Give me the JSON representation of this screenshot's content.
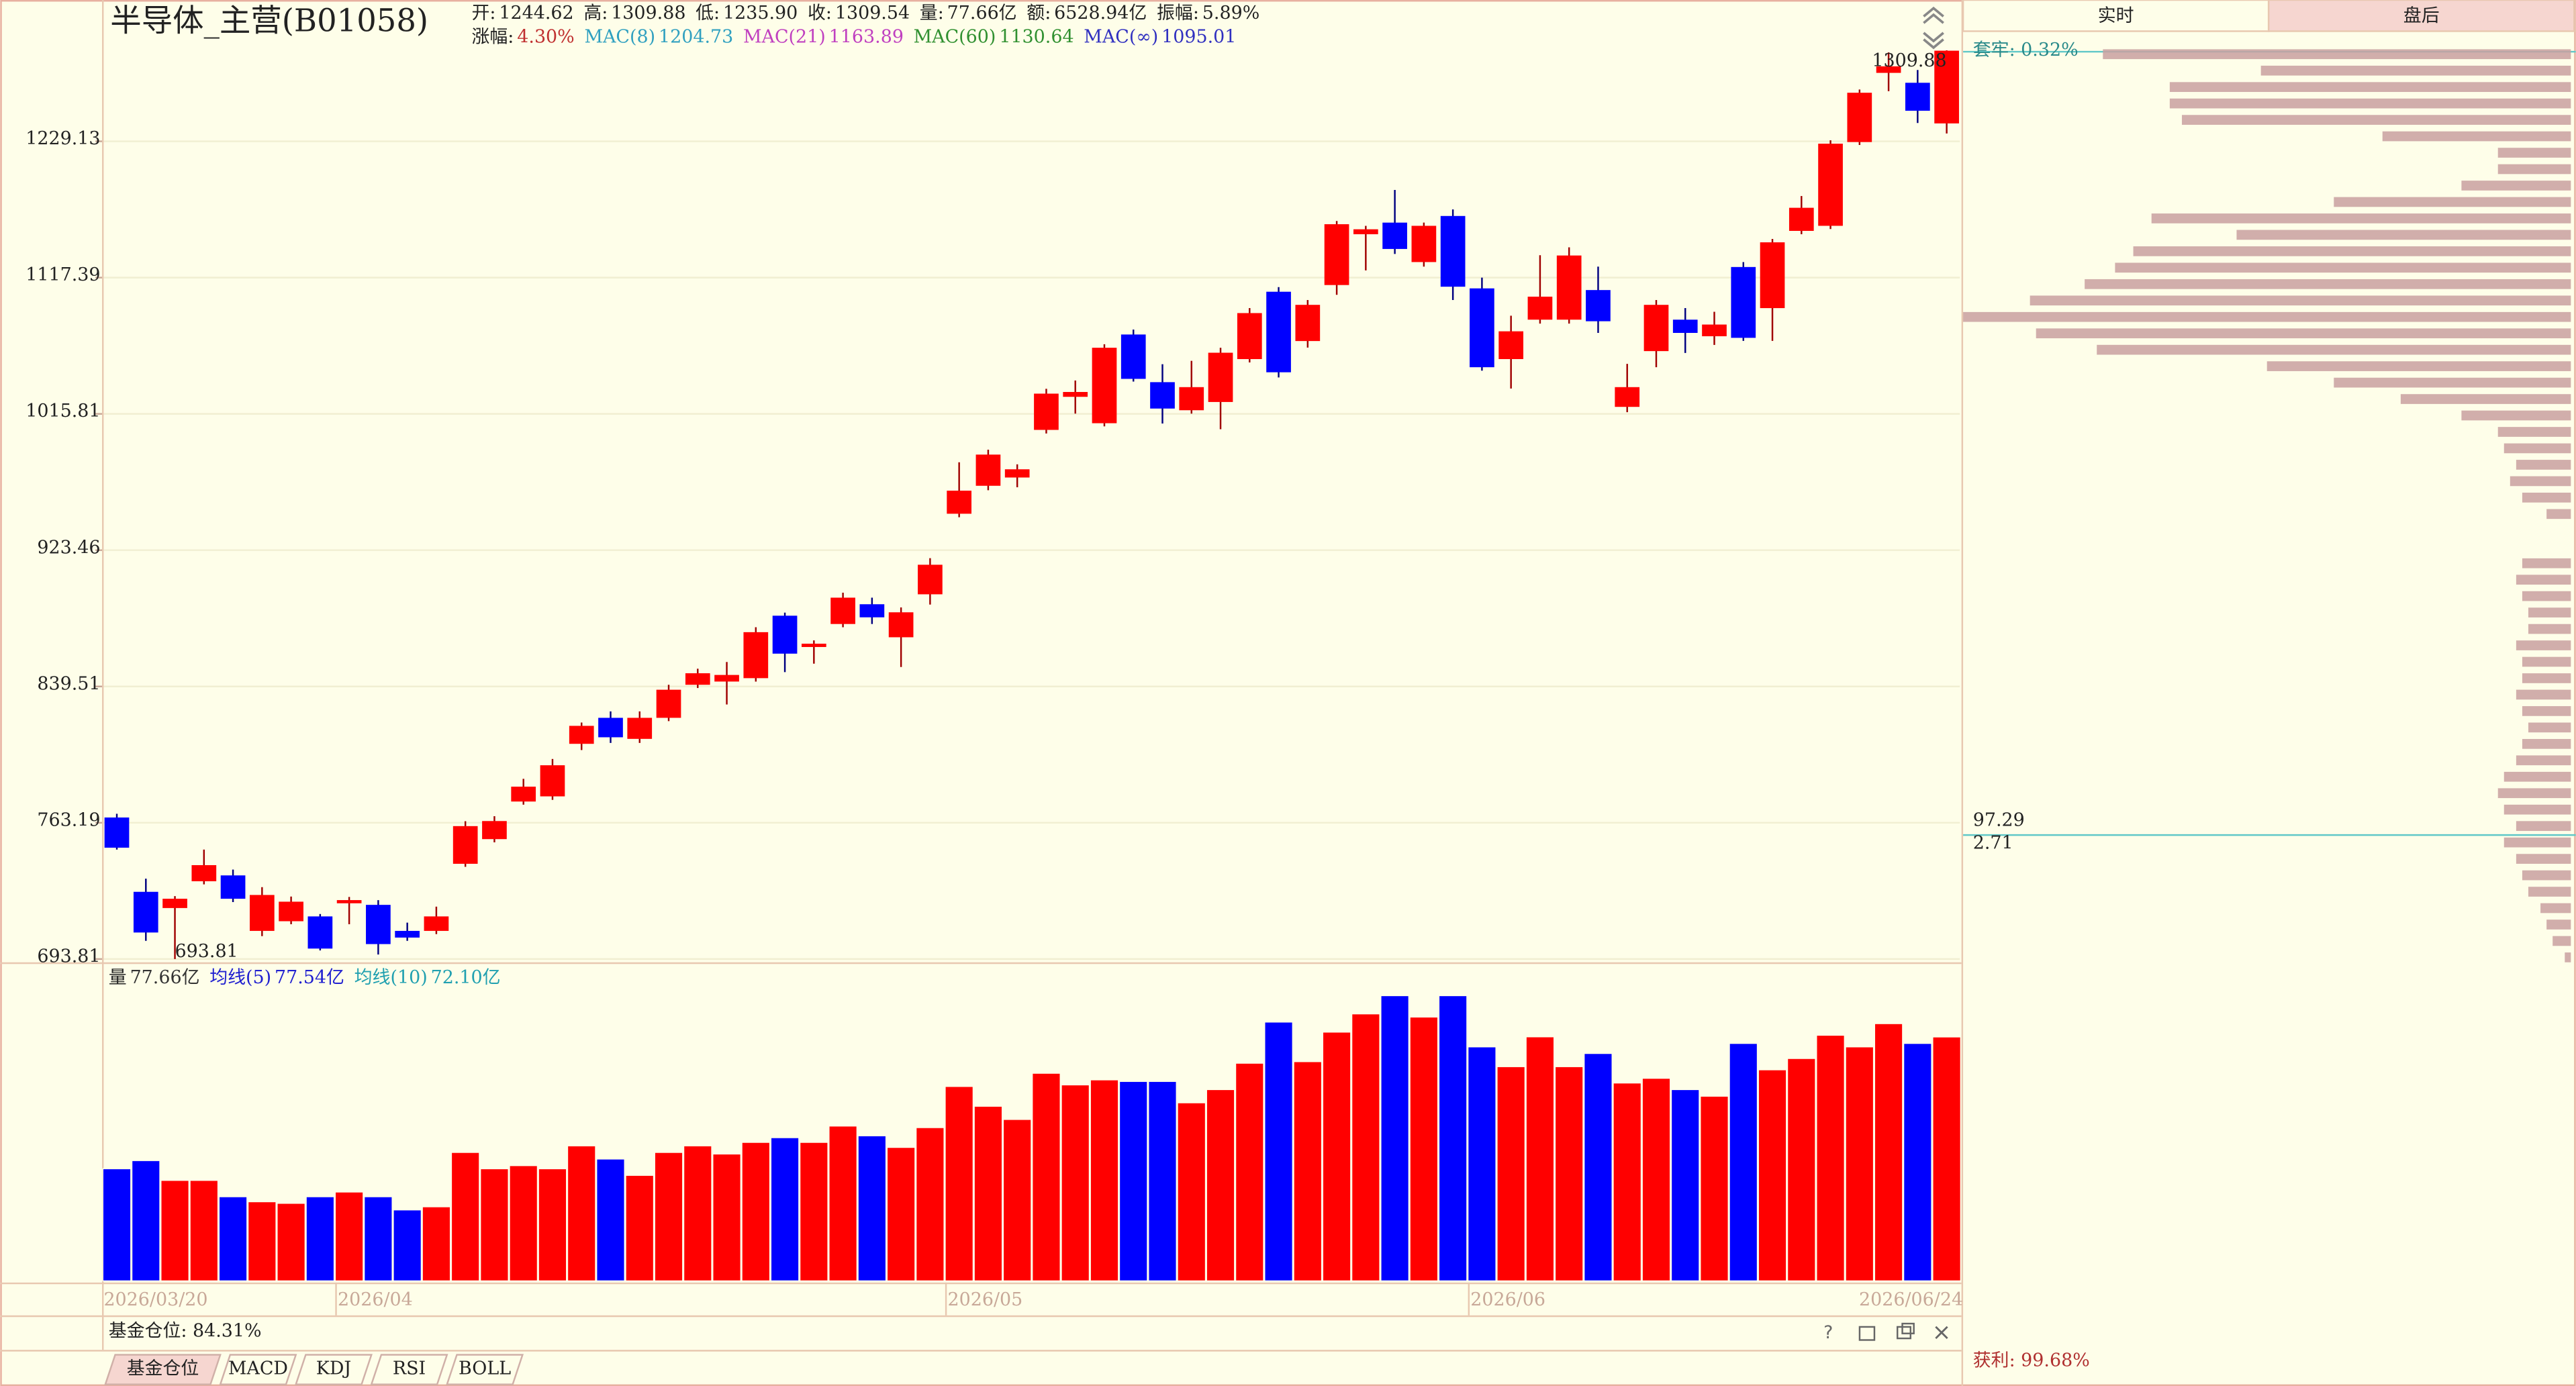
{
  "header": {
    "title": "半导体_主营(B01058)",
    "line1": [
      {
        "label": "开:",
        "value": "1244.62"
      },
      {
        "label": "高:",
        "value": "1309.88"
      },
      {
        "label": "低:",
        "value": "1235.90"
      },
      {
        "label": "收:",
        "value": "1309.54"
      },
      {
        "label": "量:",
        "value": "77.66亿"
      },
      {
        "label": "额:",
        "value": "6528.94亿"
      },
      {
        "label": "振幅:",
        "value": "5.89%"
      }
    ],
    "line2": [
      {
        "label": "涨幅:",
        "value": "4.30%",
        "color": "#c03030"
      },
      {
        "label": "MAC(8)",
        "value": "1204.73",
        "color": "#30a0c0"
      },
      {
        "label": "MAC(21)",
        "value": "1163.89",
        "color": "#c040c0"
      },
      {
        "label": "MAC(60)",
        "value": "1130.64",
        "color": "#309030"
      },
      {
        "label": "MAC(∞)",
        "value": "1095.01",
        "color": "#3030c0"
      }
    ]
  },
  "chart_data": {
    "type": "candlestick",
    "log_scale": true,
    "grid": true,
    "up_color": "#ff0000",
    "down_color": "#0000ff",
    "categories": [
      "2026/03/20",
      null,
      null,
      null,
      null,
      null,
      null,
      null,
      "2026/04",
      null,
      null,
      null,
      null,
      null,
      null,
      null,
      null,
      null,
      null,
      null,
      null,
      null,
      null,
      null,
      null,
      null,
      null,
      null,
      null,
      "2026/05",
      null,
      null,
      null,
      null,
      null,
      null,
      null,
      null,
      null,
      null,
      null,
      null,
      null,
      null,
      null,
      null,
      null,
      "2026/06",
      null,
      null,
      null,
      null,
      null,
      null,
      null,
      null,
      null,
      null,
      null,
      null,
      null,
      null,
      null,
      "2026/06/24"
    ],
    "open": [
      766,
      727.2,
      719,
      732.6,
      735.6,
      707.6,
      712.4,
      714.8,
      721.4,
      720.6,
      707.6,
      707.6,
      741.6,
      754.5,
      774.6,
      777.4,
      806.5,
      821.3,
      809.3,
      821.3,
      840.5,
      842.4,
      844.4,
      882.1,
      863.0,
      877.0,
      889.2,
      868.9,
      895.4,
      947.3,
      966.0,
      971.6,
      1004.5,
      1028,
      1009.2,
      1073.8,
      1038.6,
      1018.4,
      1024.3,
      1055.5,
      1106.4,
      1068.9,
      1111.6,
      1151.8,
      1161.2,
      1129.6,
      1166.6,
      1109.0,
      1055.5,
      1085.0,
      1085.0,
      1107.7,
      1020.8,
      1061.4,
      1085.0,
      1072.5,
      1125.7,
      1093.8,
      1154.5,
      1158.6,
      1228.5,
      1289.4,
      1280.5,
      1244.62
    ],
    "high": [
      768,
      733.9,
      725,
      749,
      738.6,
      729.6,
      724.8,
      716,
      724.6,
      723,
      711.7,
      719.7,
      764,
      766.7,
      787,
      798,
      818.6,
      825,
      825,
      840.5,
      850,
      854,
      875,
      884,
      867,
      896.4,
      893.3,
      887.2,
      918.3,
      982,
      990.7,
      980.6,
      1033.8,
      1039.8,
      1066.5,
      1077.5,
      1051.7,
      1054.2,
      1063.9,
      1093.8,
      1110,
      1100,
      1162.5,
      1158.6,
      1188,
      1161.2,
      1172,
      1117.4,
      1088,
      1135,
      1141.3,
      1126,
      1052,
      1100,
      1093.8,
      1091,
      1129.6,
      1148,
      1183,
      1230,
      1274.5,
      1308,
      1292,
      1309.88
    ],
    "low": [
      749,
      702.7,
      693.81,
      731,
      722,
      705,
      710.9,
      698,
      710.9,
      696,
      702.7,
      706,
      740,
      752.8,
      772.9,
      775.5,
      803,
      807,
      807,
      819.4,
      838.6,
      829,
      842.4,
      848,
      853,
      875,
      877,
      851,
      889,
      945,
      963,
      965,
      1002,
      1016,
      1007,
      1039,
      1009,
      1016,
      1005,
      1053,
      1042,
      1064,
      1104,
      1123,
      1136,
      1126,
      1100,
      1047,
      1034,
      1082,
      1082,
      1075,
      1017,
      1049.5,
      1060,
      1066,
      1069,
      1069,
      1151.8,
      1156,
      1226,
      1273,
      1245,
      1235.9
    ],
    "close": [
      750,
      706.8,
      723.7,
      740.9,
      723.7,
      725.6,
      722.2,
      698.9,
      723.0,
      701.1,
      704.3,
      714.8,
      761.4,
      764.1,
      782.7,
      794.5,
      816.7,
      810.2,
      821.3,
      837.6,
      847.3,
      846.3,
      872.0,
      859.0,
      865.0,
      893.3,
      881.1,
      884.2,
      914.1,
      962.7,
      987.3,
      977.2,
      1030.3,
      1031.5,
      1063.9,
      1041.0,
      1019.6,
      1035.0,
      1060.2,
      1090.0,
      1045.8,
      1096.3,
      1159.9,
      1155.8,
      1140.0,
      1158.6,
      1110.3,
      1049.5,
      1076.2,
      1102.6,
      1134.8,
      1083.8,
      1035.0,
      1096.3,
      1075.0,
      1081.3,
      1071.3,
      1145.3,
      1173.3,
      1227.1,
      1271.6,
      1295.3,
      1255.7,
      1309.54
    ],
    "ylim": [
      693.81,
      1326
    ],
    "yticks": [
      693.81,
      763.19,
      839.51,
      923.46,
      1015.81,
      1117.39,
      1229.13
    ],
    "annotations": [
      {
        "text": "1309.88",
        "index": 63
      },
      {
        "text": "693.81",
        "index": 2
      }
    ],
    "volume": {
      "legend": [
        {
          "label": "量",
          "value": "77.66亿",
          "color": "#333333"
        },
        {
          "label": "均线(5)",
          "value": "77.54亿",
          "color": "#2020d0"
        },
        {
          "label": "均线(10)",
          "value": "72.10亿",
          "color": "#20a0b0"
        }
      ],
      "ylim": [
        0,
        92
      ],
      "values": [
        35.7,
        38.3,
        32.0,
        32.0,
        26.8,
        25.2,
        24.7,
        26.8,
        28.3,
        26.8,
        22.6,
        23.6,
        40.9,
        35.7,
        36.7,
        35.7,
        43.0,
        38.8,
        33.6,
        40.9,
        43.0,
        40.4,
        44.1,
        45.6,
        44.1,
        49.3,
        46.2,
        42.5,
        48.8,
        61.9,
        55.6,
        51.4,
        66.1,
        62.4,
        64.0,
        63.5,
        63.5,
        56.7,
        60.9,
        69.3,
        82.4,
        69.8,
        79.2,
        85.0,
        90.8,
        84.0,
        90.8,
        74.5,
        68.2,
        77.7,
        68.2,
        72.4,
        63.0,
        64.5,
        60.9,
        58.8,
        75.6,
        67.2,
        70.8,
        78.2,
        74.5,
        81.9,
        75.6,
        77.66
      ]
    }
  },
  "side_panel": {
    "tabs": [
      "实时",
      "盘后"
    ],
    "trapped": "套牢: 0.32%",
    "upper": "97.29",
    "lower": "2.71",
    "profit": "获利: 99.68%",
    "profile_color": "#c9a0a0",
    "profile": [
      77,
      51,
      66,
      66,
      64,
      31,
      12,
      12,
      18,
      39,
      69,
      55,
      72,
      75,
      80,
      89,
      100,
      88,
      78,
      50,
      39,
      28,
      18,
      12,
      11,
      9,
      10,
      8,
      4,
      0,
      0,
      8,
      9,
      8,
      7,
      7,
      9,
      8,
      8,
      9,
      8,
      7,
      8,
      9,
      11,
      12,
      11,
      9,
      11,
      9,
      8,
      7,
      5,
      4,
      3,
      1
    ]
  },
  "footer": {
    "fund_position": "基金仓位: 84.31%",
    "tabs": [
      "基金仓位",
      "MACD",
      "KDJ",
      "RSI",
      "BOLL"
    ]
  }
}
